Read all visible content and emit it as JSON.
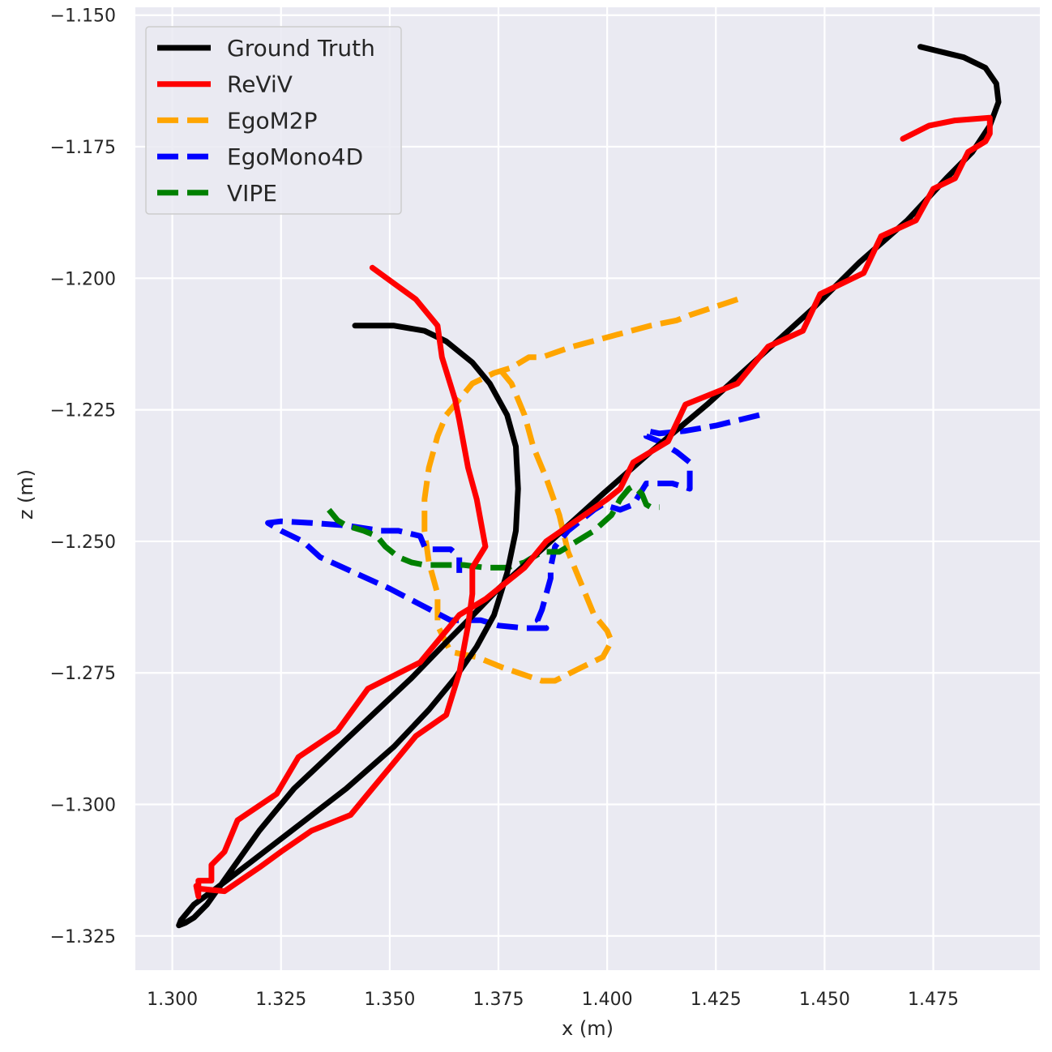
{
  "chart_data": {
    "type": "line",
    "title": "",
    "xlabel": "x (m)",
    "ylabel": "z (m)",
    "xlim": [
      1.2915,
      1.4995
    ],
    "ylim": [
      -1.3315,
      -1.1485
    ],
    "xticks": [
      "1.300",
      "1.325",
      "1.350",
      "1.375",
      "1.400",
      "1.425",
      "1.450",
      "1.475"
    ],
    "xtick_values": [
      1.3,
      1.325,
      1.35,
      1.375,
      1.4,
      1.425,
      1.45,
      1.475
    ],
    "yticks": [
      "−1.150",
      "−1.175",
      "−1.200",
      "−1.225",
      "−1.250",
      "−1.275",
      "−1.300",
      "−1.325"
    ],
    "ytick_values": [
      -1.15,
      -1.175,
      -1.2,
      -1.225,
      -1.25,
      -1.275,
      -1.3,
      -1.325
    ],
    "grid": true,
    "legend_position": "top-left",
    "background": "#eaeaf2",
    "series": [
      {
        "name": "Ground Truth",
        "color": "#000000",
        "dash": "solid",
        "points": [
          [
            1.342,
            -1.209
          ],
          [
            1.351,
            -1.209
          ],
          [
            1.358,
            -1.21
          ],
          [
            1.363,
            -1.212
          ],
          [
            1.369,
            -1.216
          ],
          [
            1.373,
            -1.22
          ],
          [
            1.377,
            -1.226
          ],
          [
            1.379,
            -1.232
          ],
          [
            1.3795,
            -1.24
          ],
          [
            1.379,
            -1.248
          ],
          [
            1.377,
            -1.256
          ],
          [
            1.374,
            -1.264
          ],
          [
            1.37,
            -1.27
          ],
          [
            1.365,
            -1.276
          ],
          [
            1.359,
            -1.282
          ],
          [
            1.351,
            -1.289
          ],
          [
            1.34,
            -1.297
          ],
          [
            1.329,
            -1.304
          ],
          [
            1.318,
            -1.311
          ],
          [
            1.31,
            -1.316
          ],
          [
            1.305,
            -1.319
          ],
          [
            1.302,
            -1.322
          ],
          [
            1.3015,
            -1.323
          ],
          [
            1.303,
            -1.3225
          ],
          [
            1.305,
            -1.3215
          ],
          [
            1.308,
            -1.319
          ],
          [
            1.314,
            -1.312
          ],
          [
            1.32,
            -1.305
          ],
          [
            1.328,
            -1.297
          ],
          [
            1.337,
            -1.29
          ],
          [
            1.346,
            -1.283
          ],
          [
            1.355,
            -1.276
          ],
          [
            1.362,
            -1.27
          ],
          [
            1.368,
            -1.265
          ],
          [
            1.375,
            -1.259
          ],
          [
            1.383,
            -1.253
          ],
          [
            1.391,
            -1.247
          ],
          [
            1.399,
            -1.241
          ],
          [
            1.41,
            -1.233
          ],
          [
            1.423,
            -1.224
          ],
          [
            1.435,
            -1.215
          ],
          [
            1.447,
            -1.206
          ],
          [
            1.458,
            -1.197
          ],
          [
            1.469,
            -1.189
          ],
          [
            1.478,
            -1.181
          ],
          [
            1.484,
            -1.176
          ],
          [
            1.488,
            -1.171
          ],
          [
            1.49,
            -1.1665
          ],
          [
            1.4895,
            -1.163
          ],
          [
            1.487,
            -1.16
          ],
          [
            1.482,
            -1.158
          ],
          [
            1.472,
            -1.156
          ]
        ]
      },
      {
        "name": "ReViV",
        "color": "#ff0000",
        "dash": "solid",
        "points": [
          [
            1.346,
            -1.198
          ],
          [
            1.351,
            -1.201
          ],
          [
            1.356,
            -1.204
          ],
          [
            1.361,
            -1.209
          ],
          [
            1.362,
            -1.215
          ],
          [
            1.365,
            -1.223
          ],
          [
            1.366,
            -1.227
          ],
          [
            1.368,
            -1.236
          ],
          [
            1.37,
            -1.242
          ],
          [
            1.372,
            -1.251
          ],
          [
            1.369,
            -1.255
          ],
          [
            1.369,
            -1.26
          ],
          [
            1.368,
            -1.266
          ],
          [
            1.366,
            -1.275
          ],
          [
            1.363,
            -1.283
          ],
          [
            1.356,
            -1.287
          ],
          [
            1.35,
            -1.293
          ],
          [
            1.346,
            -1.297
          ],
          [
            1.341,
            -1.302
          ],
          [
            1.332,
            -1.305
          ],
          [
            1.325,
            -1.309
          ],
          [
            1.32,
            -1.312
          ],
          [
            1.312,
            -1.3165
          ],
          [
            1.306,
            -1.316
          ],
          [
            1.3055,
            -1.3155
          ],
          [
            1.306,
            -1.3175
          ],
          [
            1.306,
            -1.3145
          ],
          [
            1.309,
            -1.3145
          ],
          [
            1.309,
            -1.3115
          ],
          [
            1.312,
            -1.309
          ],
          [
            1.315,
            -1.303
          ],
          [
            1.324,
            -1.298
          ],
          [
            1.329,
            -1.291
          ],
          [
            1.338,
            -1.286
          ],
          [
            1.345,
            -1.278
          ],
          [
            1.357,
            -1.273
          ],
          [
            1.366,
            -1.264
          ],
          [
            1.372,
            -1.261
          ],
          [
            1.381,
            -1.255
          ],
          [
            1.386,
            -1.25
          ],
          [
            1.393,
            -1.246
          ],
          [
            1.4,
            -1.242
          ],
          [
            1.403,
            -1.24
          ],
          [
            1.406,
            -1.235
          ],
          [
            1.414,
            -1.231
          ],
          [
            1.418,
            -1.224
          ],
          [
            1.43,
            -1.22
          ],
          [
            1.437,
            -1.213
          ],
          [
            1.445,
            -1.21
          ],
          [
            1.449,
            -1.203
          ],
          [
            1.459,
            -1.199
          ],
          [
            1.463,
            -1.192
          ],
          [
            1.471,
            -1.189
          ],
          [
            1.475,
            -1.183
          ],
          [
            1.48,
            -1.181
          ],
          [
            1.483,
            -1.176
          ],
          [
            1.487,
            -1.174
          ],
          [
            1.488,
            -1.1725
          ],
          [
            1.488,
            -1.172
          ],
          [
            1.488,
            -1.1695
          ],
          [
            1.48,
            -1.17
          ],
          [
            1.474,
            -1.171
          ],
          [
            1.468,
            -1.1735
          ]
        ]
      },
      {
        "name": "EgoM2P",
        "color": "#ffa500",
        "dash": "dashed",
        "points": [
          [
            1.43,
            -1.204
          ],
          [
            1.419,
            -1.207
          ],
          [
            1.416,
            -1.208
          ],
          [
            1.41,
            -1.209
          ],
          [
            1.401,
            -1.211
          ],
          [
            1.392,
            -1.213
          ],
          [
            1.385,
            -1.215
          ],
          [
            1.382,
            -1.215
          ],
          [
            1.378,
            -1.217
          ],
          [
            1.374,
            -1.218
          ],
          [
            1.369,
            -1.22
          ],
          [
            1.365,
            -1.224
          ],
          [
            1.363,
            -1.226
          ],
          [
            1.361,
            -1.23
          ],
          [
            1.359,
            -1.236
          ],
          [
            1.358,
            -1.242
          ],
          [
            1.358,
            -1.248
          ],
          [
            1.359,
            -1.254
          ],
          [
            1.361,
            -1.26
          ],
          [
            1.361,
            -1.266
          ],
          [
            1.364,
            -1.271
          ],
          [
            1.37,
            -1.272
          ],
          [
            1.376,
            -1.274
          ],
          [
            1.385,
            -1.2765
          ],
          [
            1.388,
            -1.2765
          ],
          [
            1.394,
            -1.274
          ],
          [
            1.399,
            -1.272
          ],
          [
            1.401,
            -1.269
          ],
          [
            1.4,
            -1.267
          ],
          [
            1.397,
            -1.264
          ],
          [
            1.394,
            -1.258
          ],
          [
            1.391,
            -1.252
          ],
          [
            1.389,
            -1.245
          ],
          [
            1.386,
            -1.238
          ],
          [
            1.383,
            -1.232
          ],
          [
            1.381,
            -1.226
          ],
          [
            1.378,
            -1.22
          ],
          [
            1.375,
            -1.217
          ]
        ]
      },
      {
        "name": "EgoMono4D",
        "color": "#0000ff",
        "dash": "dashed",
        "points": [
          [
            1.435,
            -1.226
          ],
          [
            1.425,
            -1.228
          ],
          [
            1.418,
            -1.229
          ],
          [
            1.412,
            -1.2295
          ],
          [
            1.409,
            -1.229
          ],
          [
            1.409,
            -1.23
          ],
          [
            1.412,
            -1.231
          ],
          [
            1.416,
            -1.233
          ],
          [
            1.419,
            -1.235
          ],
          [
            1.419,
            -1.238
          ],
          [
            1.419,
            -1.24
          ],
          [
            1.415,
            -1.239
          ],
          [
            1.409,
            -1.239
          ],
          [
            1.406,
            -1.243
          ],
          [
            1.403,
            -1.244
          ],
          [
            1.399,
            -1.243
          ],
          [
            1.397,
            -1.244
          ],
          [
            1.394,
            -1.246
          ],
          [
            1.391,
            -1.248
          ],
          [
            1.388,
            -1.251
          ],
          [
            1.387,
            -1.255
          ],
          [
            1.387,
            -1.257
          ],
          [
            1.386,
            -1.26
          ],
          [
            1.385,
            -1.263
          ],
          [
            1.384,
            -1.265
          ],
          [
            1.385,
            -1.266
          ],
          [
            1.386,
            -1.2665
          ],
          [
            1.381,
            -1.2665
          ],
          [
            1.375,
            -1.266
          ],
          [
            1.371,
            -1.265
          ],
          [
            1.366,
            -1.265
          ],
          [
            1.364,
            -1.265
          ],
          [
            1.357,
            -1.262
          ],
          [
            1.35,
            -1.259
          ],
          [
            1.342,
            -1.256
          ],
          [
            1.334,
            -1.253
          ],
          [
            1.33,
            -1.25
          ],
          [
            1.325,
            -1.248
          ],
          [
            1.322,
            -1.2465
          ],
          [
            1.325,
            -1.2462
          ],
          [
            1.332,
            -1.2465
          ],
          [
            1.34,
            -1.247
          ],
          [
            1.348,
            -1.248
          ],
          [
            1.352,
            -1.248
          ],
          [
            1.357,
            -1.249
          ],
          [
            1.358,
            -1.251
          ],
          [
            1.359,
            -1.2515
          ],
          [
            1.364,
            -1.2515
          ],
          [
            1.366,
            -1.253
          ],
          [
            1.366,
            -1.256
          ]
        ]
      },
      {
        "name": "VIPE",
        "color": "#008000",
        "dash": "dashed",
        "points": [
          [
            1.336,
            -1.244
          ],
          [
            1.338,
            -1.246
          ],
          [
            1.34,
            -1.247
          ],
          [
            1.344,
            -1.248
          ],
          [
            1.347,
            -1.249
          ],
          [
            1.349,
            -1.251
          ],
          [
            1.352,
            -1.253
          ],
          [
            1.355,
            -1.254
          ],
          [
            1.358,
            -1.2545
          ],
          [
            1.362,
            -1.2545
          ],
          [
            1.367,
            -1.2545
          ],
          [
            1.372,
            -1.255
          ],
          [
            1.377,
            -1.255
          ],
          [
            1.381,
            -1.254
          ],
          [
            1.385,
            -1.252
          ],
          [
            1.389,
            -1.252
          ],
          [
            1.393,
            -1.25
          ],
          [
            1.397,
            -1.248
          ],
          [
            1.401,
            -1.245
          ],
          [
            1.403,
            -1.242
          ],
          [
            1.405,
            -1.24
          ],
          [
            1.406,
            -1.2395
          ],
          [
            1.408,
            -1.241
          ],
          [
            1.409,
            -1.243
          ],
          [
            1.41,
            -1.2435
          ],
          [
            1.412,
            -1.2435
          ]
        ]
      }
    ]
  }
}
